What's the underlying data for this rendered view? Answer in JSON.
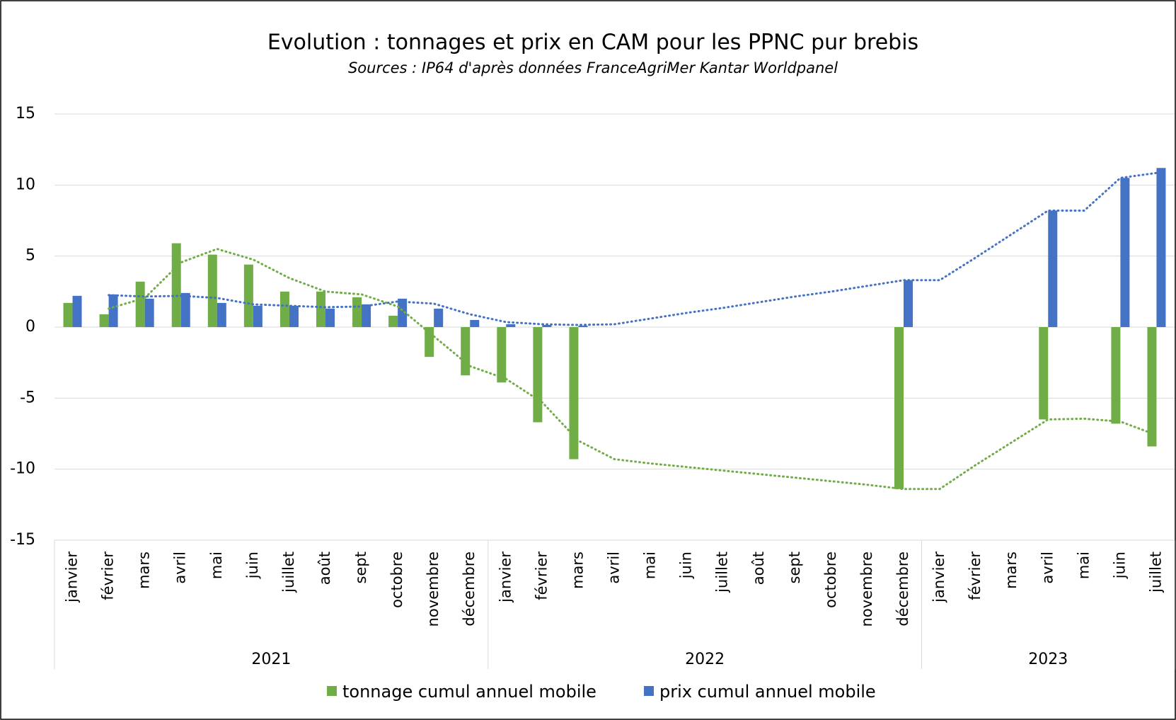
{
  "chart_data": {
    "type": "bar",
    "title": "Evolution : tonnages et prix en CAM pour les PPNC pur brebis",
    "subtitle": "Sources : IP64 d'après données FranceAgriMer Kantar Worldpanel",
    "categories": [
      "janvier",
      "février",
      "mars",
      "avril",
      "mai",
      "juin",
      "juillet",
      "août",
      "sept",
      "octobre",
      "novembre",
      "décembre",
      "janvier",
      "février",
      "mars",
      "avril",
      "mai",
      "juin",
      "juillet",
      "août",
      "sept",
      "octobre",
      "novembre",
      "décembre",
      "janvier",
      "février",
      "mars",
      "avril",
      "mai",
      "juin",
      "juillet"
    ],
    "groups": [
      {
        "label": "2021",
        "count": 12
      },
      {
        "label": "2022",
        "count": 12
      },
      {
        "label": "2023",
        "count": 7
      }
    ],
    "series": [
      {
        "name": "tonnage cumul annuel mobile",
        "color": "#70ad47",
        "values": [
          1.7,
          0.9,
          3.2,
          5.9,
          5.1,
          4.4,
          2.5,
          2.5,
          2.1,
          0.8,
          -2.1,
          -3.4,
          -3.9,
          -6.7,
          -9.3,
          null,
          null,
          null,
          null,
          null,
          null,
          null,
          null,
          -11.4,
          null,
          null,
          null,
          -6.5,
          null,
          -6.8,
          -8.4
        ],
        "trend": [
          null,
          1.3,
          2.05,
          4.55,
          5.5,
          4.75,
          3.45,
          2.5,
          2.3,
          1.45,
          -0.65,
          -2.75,
          -3.65,
          -5.3,
          -8.0,
          -9.3,
          -9.6,
          -9.85,
          -10.1,
          -10.35,
          -10.6,
          -10.85,
          -11.1,
          -11.4,
          -11.4,
          -9.7,
          -8.1,
          -6.5,
          -6.45,
          -6.65,
          -7.6
        ]
      },
      {
        "name": "prix cumul annuel mobile",
        "color": "#4472c4",
        "values": [
          2.2,
          2.3,
          2.0,
          2.4,
          1.7,
          1.5,
          1.5,
          1.3,
          1.6,
          2.0,
          1.3,
          0.5,
          0.2,
          0.15,
          0.1,
          null,
          null,
          null,
          null,
          null,
          null,
          null,
          null,
          3.3,
          null,
          null,
          null,
          8.2,
          null,
          10.5,
          11.2
        ],
        "trend": [
          null,
          2.25,
          2.15,
          2.2,
          2.05,
          1.6,
          1.5,
          1.4,
          1.45,
          1.8,
          1.65,
          0.9,
          0.35,
          0.2,
          0.15,
          0.2,
          0.6,
          1.0,
          1.35,
          1.75,
          2.15,
          2.5,
          2.9,
          3.3,
          3.3,
          4.9,
          6.55,
          8.2,
          8.2,
          10.5,
          10.85
        ]
      }
    ],
    "ylim": [
      -15,
      15
    ],
    "yticks": [
      15,
      10,
      5,
      0,
      -5,
      -10,
      -15
    ],
    "grid": true
  }
}
